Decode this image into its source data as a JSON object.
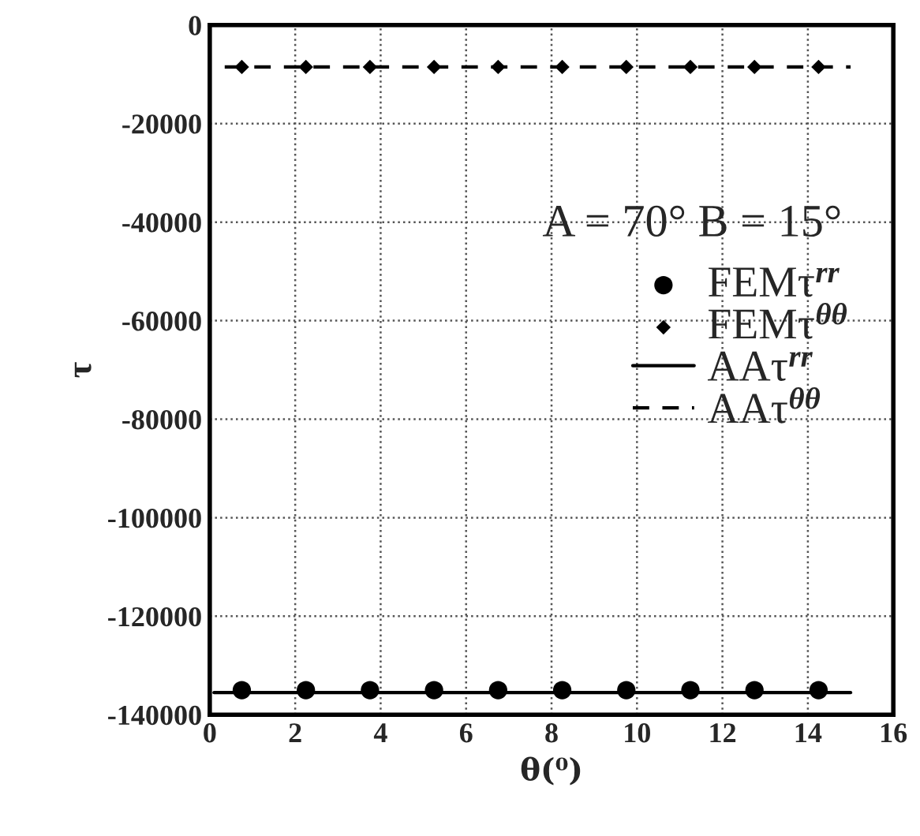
{
  "chart_data": {
    "type": "scatter",
    "xlabel": "θ(⁰)",
    "ylabel": "τ",
    "annotations": [
      "A = 70° B = 15°"
    ],
    "series": [
      {
        "name": "FEMτ$^{rr}$",
        "marker": "circle",
        "color": "#000000",
        "x": [
          0.75,
          2.25,
          3.75,
          5.25,
          6.75,
          8.25,
          9.75,
          11.25,
          12.75,
          14.25
        ],
        "values": [
          -135000,
          -135000,
          -135000,
          -135000,
          -135000,
          -135000,
          -135000,
          -135000,
          -135000,
          -135000
        ]
      },
      {
        "name": "FEMτ$^{θθ}$",
        "marker": "diamond",
        "color": "#000000",
        "x": [
          0.75,
          2.25,
          3.75,
          5.25,
          6.75,
          8.25,
          9.75,
          11.25,
          12.75,
          14.25
        ],
        "values": [
          -8500,
          -8500,
          -8500,
          -8500,
          -8500,
          -8500,
          -8500,
          -8500,
          -8500,
          -8500
        ]
      },
      {
        "name": "AAτ$^{rr}$",
        "type": "line",
        "line_style": "solid",
        "color": "#000000",
        "x": [
          0.1,
          15
        ],
        "values": [
          -135500,
          -135500
        ]
      },
      {
        "name": "AAτ$^{θθ}$",
        "type": "line",
        "line_style": "dashed",
        "color": "#000000",
        "x": [
          0.35,
          15
        ],
        "values": [
          -8500,
          -8500
        ]
      }
    ],
    "xlim": [
      0,
      16
    ],
    "xticks": [
      0,
      2,
      4,
      6,
      8,
      10,
      12,
      14,
      16
    ],
    "ylim": [
      -140000,
      0
    ],
    "yticks": [
      -140000,
      -120000,
      -100000,
      -80000,
      -60000,
      -40000,
      -20000,
      0
    ],
    "grid": true,
    "legend": "right"
  }
}
